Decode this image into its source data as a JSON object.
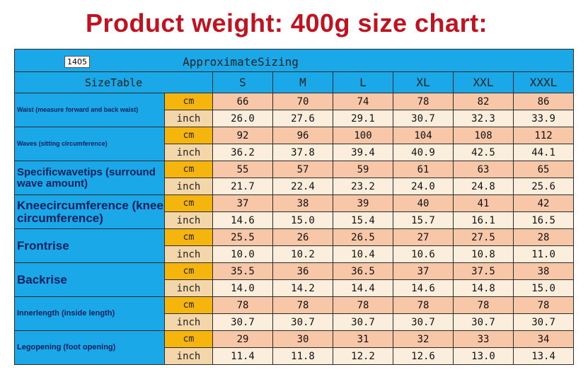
{
  "title": "Product weight: 400g size chart:",
  "table": {
    "code": "1405",
    "caption": "ApproximateSizing",
    "size_table_label": "SizeTable",
    "sizes": [
      "S",
      "M",
      "L",
      "XL",
      "XXL",
      "XXXL"
    ],
    "units": {
      "cm": "cm",
      "inch": "inch"
    },
    "rows": [
      {
        "label": "Waist (measure forward and back waist)",
        "cm": [
          "66",
          "70",
          "74",
          "78",
          "82",
          "86"
        ],
        "inch": [
          "26.0",
          "27.6",
          "29.1",
          "30.7",
          "32.3",
          "33.9"
        ]
      },
      {
        "label": "Waves (sitting circumference)",
        "cm": [
          "92",
          "96",
          "100",
          "104",
          "108",
          "112"
        ],
        "inch": [
          "36.2",
          "37.8",
          "39.4",
          "40.9",
          "42.5",
          "44.1"
        ]
      },
      {
        "label": "Specificwavetips (surround wave amount)",
        "cm": [
          "55",
          "57",
          "59",
          "61",
          "63",
          "65"
        ],
        "inch": [
          "21.7",
          "22.4",
          "23.2",
          "24.0",
          "24.8",
          "25.6"
        ]
      },
      {
        "label": "Kneecircumference (knee circumference)",
        "cm": [
          "37",
          "38",
          "39",
          "40",
          "41",
          "42"
        ],
        "inch": [
          "14.6",
          "15.0",
          "15.4",
          "15.7",
          "16.1",
          "16.5"
        ]
      },
      {
        "label": "Frontrise",
        "cm": [
          "25.5",
          "26",
          "26.5",
          "27",
          "27.5",
          "28"
        ],
        "inch": [
          "10.0",
          "10.2",
          "10.4",
          "10.6",
          "10.8",
          "11.0"
        ]
      },
      {
        "label": "Backrise",
        "cm": [
          "35.5",
          "36",
          "36.5",
          "37",
          "37.5",
          "38"
        ],
        "inch": [
          "14.0",
          "14.2",
          "14.4",
          "14.6",
          "14.8",
          "15.0"
        ]
      },
      {
        "label": "Innerlength (inside length)",
        "cm": [
          "78",
          "78",
          "78",
          "78",
          "78",
          "78"
        ],
        "inch": [
          "30.7",
          "30.7",
          "30.7",
          "30.7",
          "30.7",
          "30.7"
        ]
      },
      {
        "label": "Legopening (foot opening)",
        "cm": [
          "29",
          "30",
          "31",
          "32",
          "33",
          "34"
        ],
        "inch": [
          "11.4",
          "11.8",
          "12.2",
          "12.6",
          "13.0",
          "13.4"
        ]
      }
    ]
  }
}
